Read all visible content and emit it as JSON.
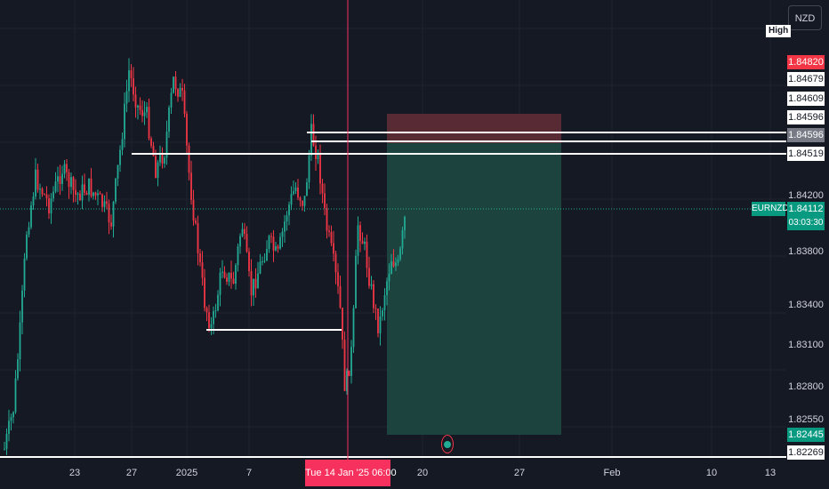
{
  "header": {
    "currency_button": "NZD",
    "high_tag": "High"
  },
  "symbol": "EURNZD",
  "countdown": "03:03:30",
  "crosshair_date": "Tue 14 Jan '25   06:00",
  "price_labels": [
    {
      "text": "1.84820",
      "style": "red"
    },
    {
      "text": "1.84679",
      "style": "white"
    },
    {
      "text": "1.84609",
      "style": "white"
    },
    {
      "text": "1.84596",
      "style": "white"
    },
    {
      "text": "1.84596",
      "style": "gray"
    },
    {
      "text": "1.84519",
      "style": "white"
    },
    {
      "text": "1.84200",
      "style": "plain"
    },
    {
      "text": "1.84112",
      "style": "green"
    },
    {
      "text": "1.83800",
      "style": "plain"
    },
    {
      "text": "1.83400",
      "style": "plain"
    },
    {
      "text": "1.83100",
      "style": "plain"
    },
    {
      "text": "1.82800",
      "style": "plain"
    },
    {
      "text": "1.82550",
      "style": "plain"
    },
    {
      "text": "1.82445",
      "style": "green"
    },
    {
      "text": "1.82269",
      "style": "white"
    }
  ],
  "x_ticks": [
    "23",
    "27",
    "2025",
    "7",
    "20",
    "27",
    "Feb",
    "10",
    "13"
  ],
  "colors": {
    "background": "#151924",
    "up": "#22ab94",
    "down": "#f23645",
    "crosshair": "#f7315e",
    "profit_zone": "#1e4a44",
    "loss_zone": "#5a2a35"
  },
  "icons": {
    "event_marker": "economic-event-icon"
  }
}
